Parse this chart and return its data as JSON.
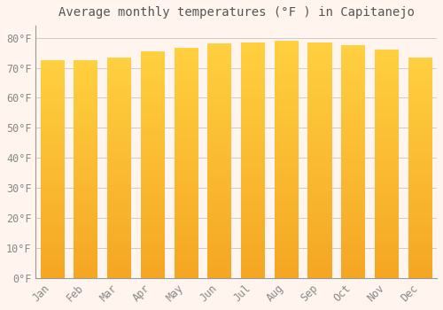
{
  "title": "Average monthly temperatures (°F ) in Capitanejo",
  "months": [
    "Jan",
    "Feb",
    "Mar",
    "Apr",
    "May",
    "Jun",
    "Jul",
    "Aug",
    "Sep",
    "Oct",
    "Nov",
    "Dec"
  ],
  "values": [
    72.5,
    72.5,
    73.5,
    75.5,
    76.5,
    78.0,
    78.5,
    79.0,
    78.5,
    77.5,
    76.0,
    73.5
  ],
  "bar_color_bottom": "#F5A623",
  "bar_color_top": "#FFD040",
  "background_color": "#FFF5EE",
  "plot_bg_color": "#FFF5EE",
  "grid_color": "#CCCCCC",
  "ytick_labels": [
    "0°F",
    "10°F",
    "20°F",
    "30°F",
    "40°F",
    "50°F",
    "60°F",
    "70°F",
    "80°F"
  ],
  "ytick_values": [
    0,
    10,
    20,
    30,
    40,
    50,
    60,
    70,
    80
  ],
  "ylim": [
    0,
    84
  ],
  "title_fontsize": 10,
  "tick_fontsize": 8.5
}
